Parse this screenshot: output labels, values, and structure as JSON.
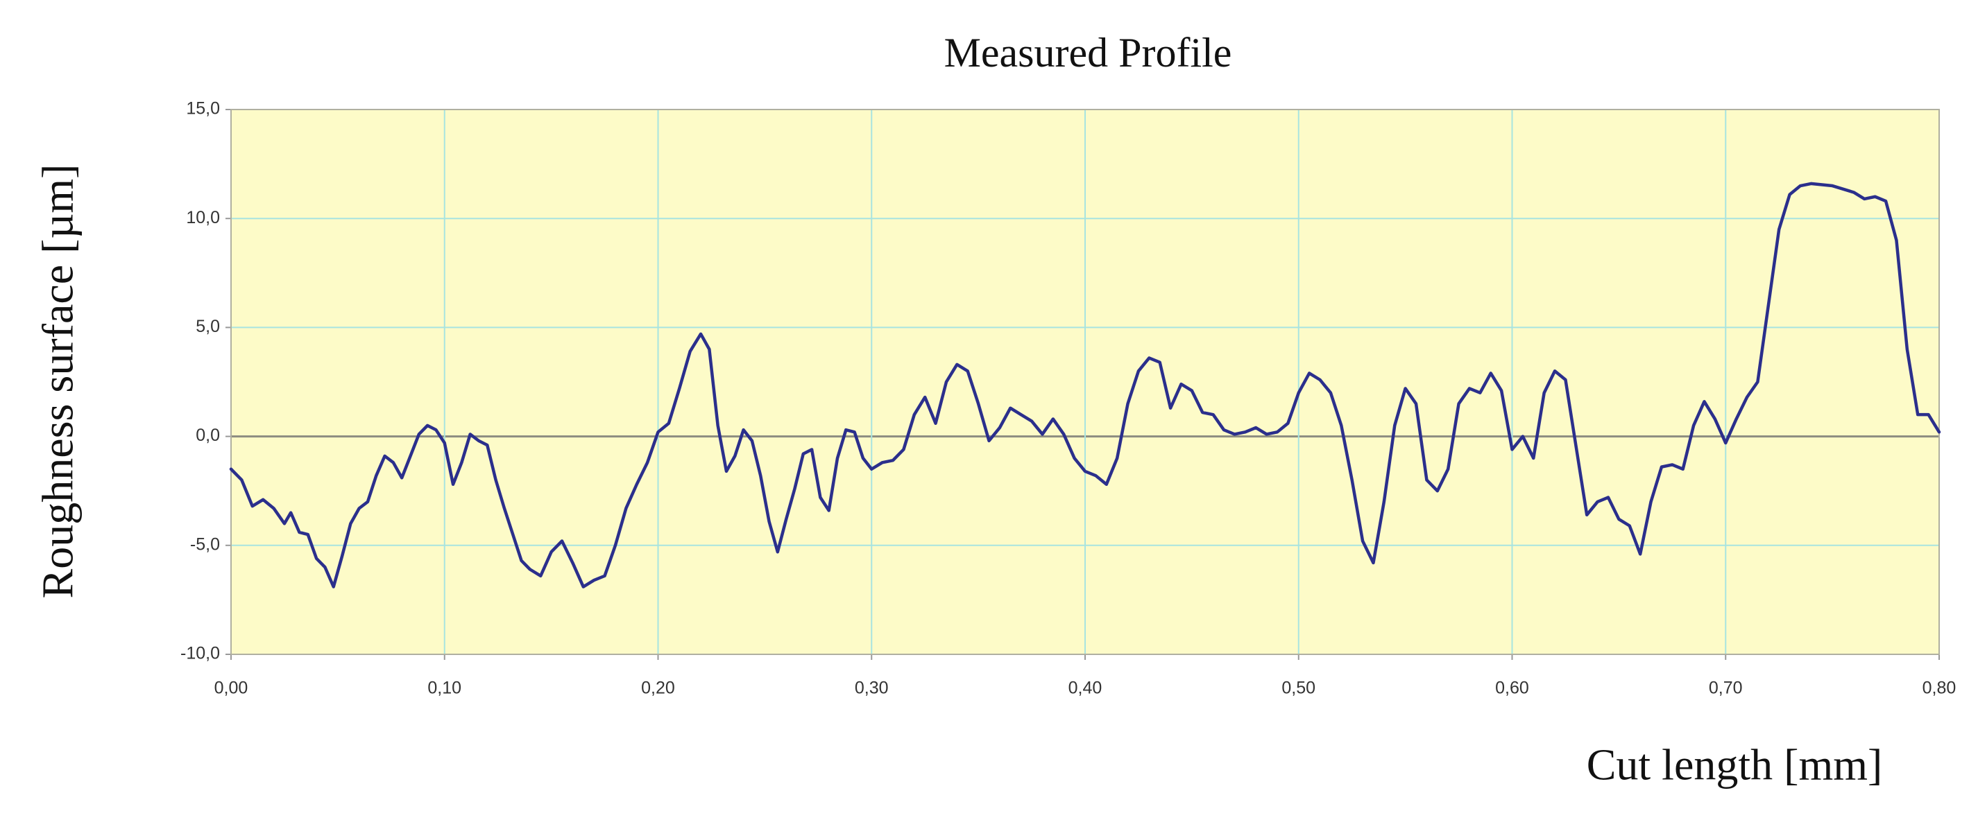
{
  "chart_data": {
    "type": "line",
    "title": "Measured Profile",
    "x_label": "Cut length [mm]",
    "y_label": "Roughness surface [µm]",
    "color": "#2b2f8c",
    "plot_background": "#fdfbc8",
    "grid": true,
    "grid_color": "#a8e4e0",
    "x": [
      0.0,
      0.005,
      0.01,
      0.015,
      0.02,
      0.025,
      0.028,
      0.032,
      0.036,
      0.04,
      0.044,
      0.048,
      0.052,
      0.056,
      0.06,
      0.064,
      0.068,
      0.072,
      0.076,
      0.08,
      0.084,
      0.088,
      0.092,
      0.096,
      0.1,
      0.104,
      0.108,
      0.112,
      0.116,
      0.12,
      0.124,
      0.128,
      0.132,
      0.136,
      0.14,
      0.145,
      0.15,
      0.155,
      0.16,
      0.165,
      0.17,
      0.175,
      0.18,
      0.185,
      0.19,
      0.195,
      0.2,
      0.205,
      0.21,
      0.215,
      0.22,
      0.224,
      0.228,
      0.232,
      0.236,
      0.24,
      0.244,
      0.248,
      0.252,
      0.256,
      0.26,
      0.264,
      0.268,
      0.272,
      0.276,
      0.28,
      0.284,
      0.288,
      0.292,
      0.296,
      0.3,
      0.305,
      0.31,
      0.315,
      0.32,
      0.325,
      0.33,
      0.335,
      0.34,
      0.345,
      0.35,
      0.355,
      0.36,
      0.365,
      0.37,
      0.375,
      0.38,
      0.385,
      0.39,
      0.395,
      0.4,
      0.405,
      0.41,
      0.415,
      0.42,
      0.425,
      0.43,
      0.435,
      0.44,
      0.445,
      0.45,
      0.455,
      0.46,
      0.465,
      0.47,
      0.475,
      0.48,
      0.485,
      0.49,
      0.495,
      0.5,
      0.505,
      0.51,
      0.515,
      0.52,
      0.525,
      0.53,
      0.535,
      0.54,
      0.545,
      0.55,
      0.555,
      0.56,
      0.565,
      0.57,
      0.575,
      0.58,
      0.585,
      0.59,
      0.595,
      0.6,
      0.605,
      0.61,
      0.615,
      0.62,
      0.625,
      0.63,
      0.635,
      0.64,
      0.645,
      0.65,
      0.655,
      0.66,
      0.665,
      0.67,
      0.675,
      0.68,
      0.685,
      0.69,
      0.695,
      0.7,
      0.705,
      0.71,
      0.715,
      0.72,
      0.725,
      0.73,
      0.735,
      0.74,
      0.75,
      0.76,
      0.765,
      0.77,
      0.775,
      0.78,
      0.785,
      0.79,
      0.795,
      0.8
    ],
    "values": [
      -1.5,
      -2.0,
      -3.2,
      -2.9,
      -3.3,
      -4.0,
      -3.5,
      -4.4,
      -4.5,
      -5.6,
      -6.0,
      -6.9,
      -5.5,
      -4.0,
      -3.3,
      -3.0,
      -1.8,
      -0.9,
      -1.2,
      -1.9,
      -0.9,
      0.1,
      0.5,
      0.3,
      -0.3,
      -2.2,
      -1.2,
      0.1,
      -0.2,
      -0.4,
      -2.0,
      -3.3,
      -4.5,
      -5.7,
      -6.1,
      -6.4,
      -5.3,
      -4.8,
      -5.8,
      -6.9,
      -6.6,
      -6.4,
      -5.0,
      -3.3,
      -2.2,
      -1.2,
      0.2,
      0.6,
      2.2,
      3.9,
      4.7,
      4.0,
      0.5,
      -1.6,
      -0.9,
      0.3,
      -0.2,
      -1.8,
      -3.9,
      -5.3,
      -3.8,
      -2.4,
      -0.8,
      -0.6,
      -2.8,
      -3.4,
      -1.0,
      0.3,
      0.2,
      -1.0,
      -1.5,
      -1.2,
      -1.1,
      -0.6,
      1.0,
      1.8,
      0.6,
      2.5,
      3.3,
      3.0,
      1.5,
      -0.2,
      0.4,
      1.3,
      1.0,
      0.7,
      0.1,
      0.8,
      0.1,
      -1.0,
      -1.6,
      -1.8,
      -2.2,
      -1.0,
      1.5,
      3.0,
      3.6,
      3.4,
      1.3,
      2.4,
      2.1,
      1.1,
      1.0,
      0.3,
      0.1,
      0.2,
      0.4,
      0.1,
      0.2,
      0.6,
      2.0,
      2.9,
      2.6,
      2.0,
      0.5,
      -2.0,
      -4.8,
      -5.8,
      -3.0,
      0.5,
      2.2,
      1.5,
      -2.0,
      -2.5,
      -1.5,
      1.5,
      2.2,
      2.0,
      2.9,
      2.1,
      -0.6,
      0.0,
      -1.0,
      2.0,
      3.0,
      2.6,
      -0.5,
      -3.6,
      -3.0,
      -2.8,
      -3.8,
      -4.1,
      -5.4,
      -3.0,
      -1.4,
      -1.3,
      -1.5,
      0.5,
      1.6,
      0.8,
      -0.3,
      0.8,
      1.8,
      2.5,
      6.0,
      9.5,
      11.1,
      11.5,
      11.6,
      11.5,
      11.2,
      10.9,
      11.0,
      10.8,
      9.0,
      4.0,
      1.0,
      1.0,
      0.2
    ],
    "xlim": [
      0,
      0.8
    ],
    "xticks": [
      {
        "value": 0,
        "label": "0,00"
      },
      {
        "value": 0.1,
        "label": "0,10"
      },
      {
        "value": 0.2,
        "label": "0,20"
      },
      {
        "value": 0.3,
        "label": "0,30"
      },
      {
        "value": 0.4,
        "label": "0,40"
      },
      {
        "value": 0.5,
        "label": "0,50"
      },
      {
        "value": 0.6,
        "label": "0,60"
      },
      {
        "value": 0.7,
        "label": "0,70"
      },
      {
        "value": 0.8,
        "label": "0,80"
      }
    ],
    "ylim": [
      -10,
      15
    ],
    "yticks": [
      {
        "value": -10,
        "label": "-10,0"
      },
      {
        "value": -5,
        "label": "-5,0"
      },
      {
        "value": 0,
        "label": "0,0"
      },
      {
        "value": 5,
        "label": "5,0"
      },
      {
        "value": 10,
        "label": "10,0"
      },
      {
        "value": 15,
        "label": "15,0"
      }
    ]
  }
}
